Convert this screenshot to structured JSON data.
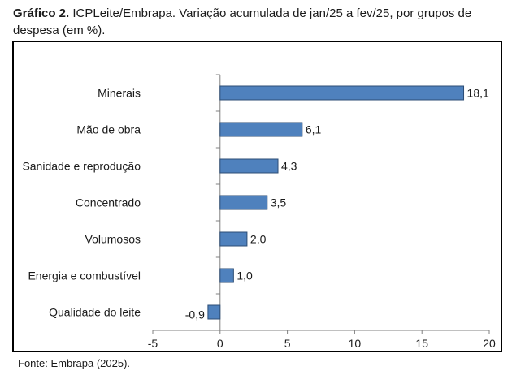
{
  "caption": {
    "prefix": "Gráfico 2.",
    "text": " ICPLeite/Embrapa. Variação acumulada de jan/25 a fev/25, por grupos de despesa (em %)."
  },
  "source": "Fonte: Embrapa (2025).",
  "colors": {
    "bar": "#4f81bd",
    "bar_edge": "#2c4d75",
    "axis": "#808080"
  },
  "chart_data": {
    "type": "bar",
    "orientation": "horizontal",
    "categories": [
      "Minerais",
      "Mão de obra",
      "Sanidade e reprodução",
      "Concentrado",
      "Volumosos",
      "Energia e combustível",
      "Qualidade do leite"
    ],
    "values": [
      18.1,
      6.1,
      4.3,
      3.5,
      2.0,
      1.0,
      -0.9
    ],
    "value_labels": [
      "18,1",
      "6,1",
      "4,3",
      "3,5",
      "2,0",
      "1,0",
      "-0,9"
    ],
    "xlim": [
      -5,
      20
    ],
    "xticks": [
      -5,
      0,
      5,
      10,
      15,
      20
    ],
    "xtick_labels": [
      "-5",
      "0",
      "5",
      "10",
      "15",
      "20"
    ],
    "grid": false,
    "legend": "none"
  }
}
